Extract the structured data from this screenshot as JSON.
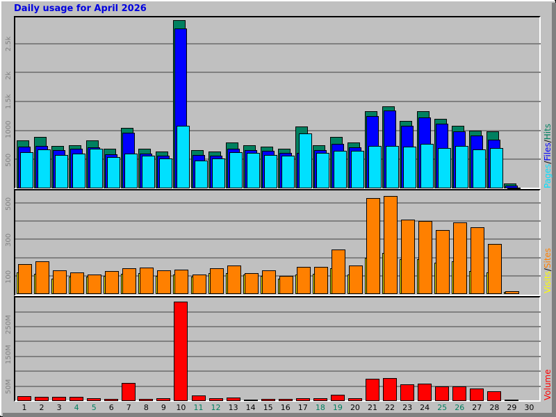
{
  "title": "Daily usage for April 2026",
  "colors": {
    "hits": "#008060",
    "files": "#0000ff",
    "pages": "#00e0ff",
    "visits": "#ffff00",
    "sites": "#ff8000",
    "volume": "#ff0000",
    "title": "#0000e0",
    "weekend_label": "#008060",
    "weekday_label": "#000000"
  },
  "legends": {
    "top": [
      "Pages",
      "/",
      "Files",
      "/",
      "Hits"
    ],
    "middle": [
      "Visits",
      "/",
      "Sites"
    ],
    "bottom": [
      "Volume"
    ]
  },
  "chart_data": [
    {
      "type": "bar",
      "title": "Daily usage for April 2026 - Hits/Files/Pages",
      "ylabel": "Pages/Files/Hits",
      "yticks": [
        "500",
        "1000",
        "1.5k",
        "2k",
        "2.5k"
      ],
      "ylim": [
        0,
        2950
      ],
      "categories": [
        "1",
        "2",
        "3",
        "4",
        "5",
        "6",
        "7",
        "8",
        "9",
        "10",
        "11",
        "12",
        "13",
        "14",
        "15",
        "16",
        "17",
        "18",
        "19",
        "20",
        "21",
        "22",
        "23",
        "24",
        "25",
        "26",
        "27",
        "28",
        "29",
        "30"
      ],
      "series": [
        {
          "name": "Hits",
          "values": [
            830,
            890,
            730,
            740,
            830,
            680,
            1050,
            680,
            640,
            2900,
            660,
            640,
            790,
            740,
            720,
            690,
            1070,
            750,
            890,
            790,
            1330,
            1420,
            1160,
            1330,
            1200,
            1080,
            1000,
            980,
            90,
            0
          ]
        },
        {
          "name": "Files",
          "values": [
            760,
            770,
            700,
            720,
            750,
            620,
            1000,
            640,
            600,
            2800,
            610,
            600,
            720,
            700,
            680,
            650,
            650,
            700,
            800,
            740,
            1280,
            1380,
            1120,
            1260,
            1150,
            1020,
            950,
            880,
            80,
            0
          ]
        },
        {
          "name": "Pages",
          "values": [
            700,
            750,
            650,
            670,
            760,
            610,
            670,
            640,
            590,
            1150,
            550,
            590,
            700,
            680,
            650,
            640,
            1020,
            680,
            720,
            720,
            800,
            800,
            790,
            840,
            770,
            810,
            740,
            770,
            80,
            0
          ]
        }
      ]
    },
    {
      "type": "bar",
      "title": "Daily usage for April 2026 - Visits/Sites",
      "ylabel": "Visits/Sites",
      "yticks": [
        "100",
        "300",
        "500"
      ],
      "ylim": [
        0,
        560
      ],
      "categories": [
        "1",
        "2",
        "3",
        "4",
        "5",
        "6",
        "7",
        "8",
        "9",
        "10",
        "11",
        "12",
        "13",
        "14",
        "15",
        "16",
        "17",
        "18",
        "19",
        "20",
        "21",
        "22",
        "23",
        "24",
        "25",
        "26",
        "27",
        "28",
        "29",
        "30"
      ],
      "series": [
        {
          "name": "Visits",
          "values": [
            120,
            110,
            85,
            95,
            95,
            100,
            110,
            115,
            100,
            105,
            95,
            115,
            115,
            105,
            100,
            85,
            105,
            110,
            140,
            105,
            200,
            225,
            190,
            190,
            170,
            180,
            125,
            120,
            10,
            0
          ]
        },
        {
          "name": "Sites",
          "values": [
            165,
            180,
            130,
            120,
            105,
            125,
            140,
            145,
            130,
            135,
            105,
            140,
            155,
            115,
            130,
            100,
            150,
            150,
            245,
            155,
            525,
            540,
            410,
            400,
            350,
            395,
            365,
            275,
            15,
            0
          ]
        }
      ]
    },
    {
      "type": "bar",
      "title": "Daily usage for April 2026 - Volume",
      "ylabel": "Volume",
      "yticks": [
        "50M",
        "150M",
        "250M"
      ],
      "ylim": [
        0,
        340
      ],
      "categories": [
        "1",
        "2",
        "3",
        "4",
        "5",
        "6",
        "7",
        "8",
        "9",
        "10",
        "11",
        "12",
        "13",
        "14",
        "15",
        "16",
        "17",
        "18",
        "19",
        "20",
        "21",
        "22",
        "23",
        "24",
        "25",
        "26",
        "27",
        "28",
        "29",
        "30"
      ],
      "series": [
        {
          "name": "Volume (MB)",
          "values": [
            17,
            14,
            14,
            14,
            9,
            7,
            60,
            7,
            9,
            335,
            19,
            9,
            12,
            5,
            7,
            7,
            9,
            9,
            22,
            9,
            74,
            78,
            57,
            59,
            50,
            48,
            43,
            32,
            2,
            0
          ]
        }
      ]
    }
  ],
  "xaxis": {
    "labels": [
      "1",
      "2",
      "3",
      "4",
      "5",
      "6",
      "7",
      "8",
      "9",
      "10",
      "11",
      "12",
      "13",
      "14",
      "15",
      "16",
      "17",
      "18",
      "19",
      "20",
      "21",
      "22",
      "23",
      "24",
      "25",
      "26",
      "27",
      "28",
      "29",
      "30"
    ],
    "weekend": [
      4,
      5,
      11,
      12,
      18,
      19,
      25,
      26
    ]
  }
}
